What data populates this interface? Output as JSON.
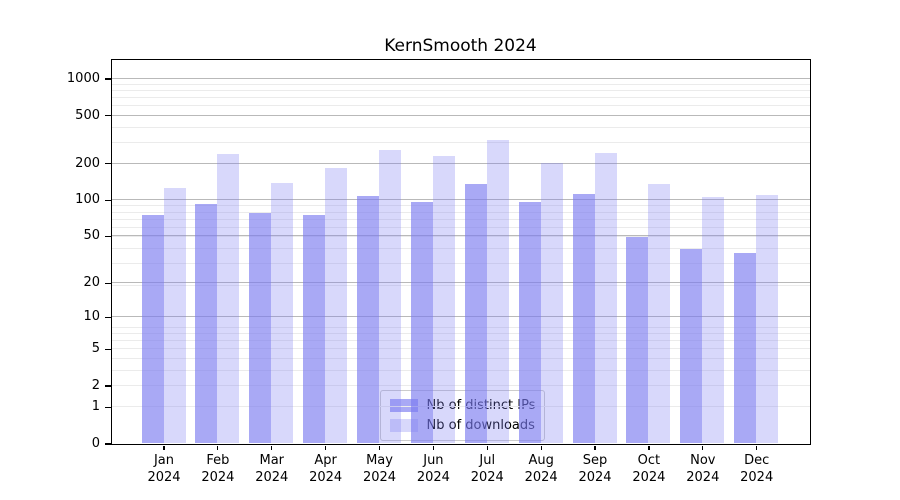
{
  "title": "KernSmooth 2024",
  "colors": {
    "bar_base": "#7878f0",
    "grid_major": "#b9b9b9",
    "grid_minor": "#ebebeb",
    "axis": "#000000",
    "legend_border": "#cccccc",
    "legend_bg": "#ffffff"
  },
  "chart_data": {
    "type": "bar",
    "title": "KernSmooth 2024",
    "yscale": "log1p",
    "ylim": [
      0,
      1435
    ],
    "yticks": [
      0,
      1,
      2,
      5,
      10,
      20,
      50,
      100,
      200,
      500,
      1000
    ],
    "grid": true,
    "legend_position": "lower center",
    "categories": [
      [
        "Jan",
        "2024"
      ],
      [
        "Feb",
        "2024"
      ],
      [
        "Mar",
        "2024"
      ],
      [
        "Apr",
        "2024"
      ],
      [
        "May",
        "2024"
      ],
      [
        "Jun",
        "2024"
      ],
      [
        "Jul",
        "2024"
      ],
      [
        "Aug",
        "2024"
      ],
      [
        "Sep",
        "2024"
      ],
      [
        "Oct",
        "2024"
      ],
      [
        "Nov",
        "2024"
      ],
      [
        "Dec",
        "2024"
      ]
    ],
    "series": [
      {
        "name": "Nb of distinct IPs",
        "color": "#7878f0",
        "alpha": 0.64,
        "values": [
          75,
          93,
          77,
          75,
          107,
          96,
          134,
          95,
          112,
          49,
          39,
          36
        ]
      },
      {
        "name": "Nb of downloads",
        "color": "#7878f0",
        "alpha": 0.29,
        "values": [
          124,
          240,
          138,
          184,
          257,
          229,
          309,
          200,
          245,
          136,
          105,
          110
        ]
      }
    ]
  }
}
